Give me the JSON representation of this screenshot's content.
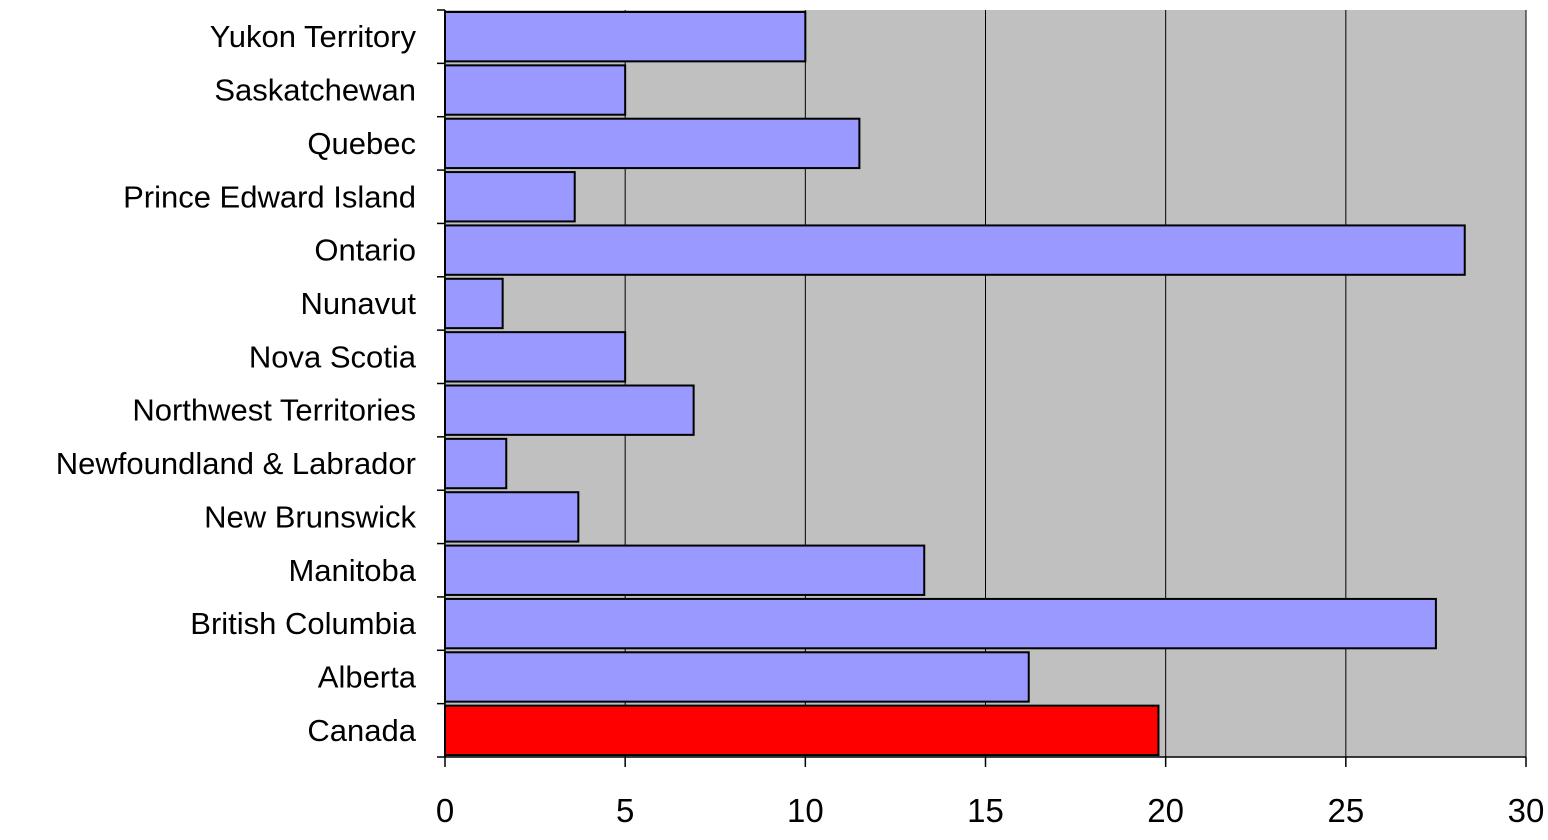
{
  "colors": {
    "plot_background": "#c0c0c0",
    "bar_fill": "#9999ff",
    "highlight_fill": "#ff0000",
    "bar_stroke": "#000000",
    "gridline": "#000000"
  },
  "chart_data": {
    "type": "bar",
    "orientation": "horizontal",
    "title": "",
    "xlabel": "",
    "ylabel": "",
    "xlim": [
      0,
      30
    ],
    "x_ticks": [
      0,
      5,
      10,
      15,
      20,
      25,
      30
    ],
    "grid": true,
    "legend": "none",
    "categories": [
      "Yukon Territory",
      "Saskatchewan",
      "Quebec",
      "Prince Edward Island",
      "Ontario",
      "Nunavut",
      "Nova Scotia",
      "Northwest Territories",
      "Newfoundland & Labrador",
      "New Brunswick",
      "Manitoba",
      "British Columbia",
      "Alberta",
      "Canada"
    ],
    "values": [
      10,
      5,
      11.5,
      3.6,
      28.3,
      1.6,
      5,
      6.9,
      1.7,
      3.7,
      13.3,
      27.5,
      16.2,
      19.8
    ],
    "highlight_category": "Canada"
  }
}
